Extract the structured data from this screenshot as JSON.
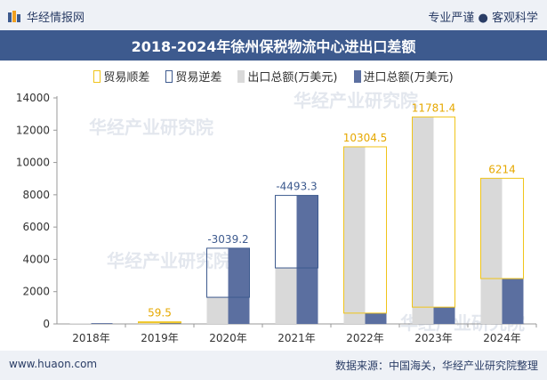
{
  "header": {
    "logo_text": "华经情报网",
    "slogan": "专业严谨 ● 客观科学"
  },
  "title": "2018-2024年徐州保税物流中心进出口差额",
  "footer": {
    "site": "www.huaon.com",
    "source": "数据来源：中国海关，华经产业研究院整理"
  },
  "watermark": "华经产业研究院",
  "colors": {
    "export": "#d9d9d9",
    "import": "#5b6fa0",
    "surplus": "#f0c419",
    "deficit": "#3d5a8e"
  },
  "chart_data": {
    "type": "bar",
    "categories": [
      "2018年",
      "2019年",
      "2020年",
      "2021年",
      "2022年",
      "2023年",
      "2024年"
    ],
    "series": [
      {
        "name": "出口总额(万美元)",
        "values": [
          40,
          130,
          1650,
          3470,
          10970,
          12820,
          9020
        ]
      },
      {
        "name": "进口总额(万美元)",
        "values": [
          50,
          70,
          4690,
          7960,
          670,
          1040,
          2810
        ]
      }
    ],
    "balance": {
      "surplus_name": "贸易顺差",
      "deficit_name": "贸易逆差",
      "values": [
        null,
        59.5,
        -3039.2,
        -4493.3,
        10304.5,
        11781.4,
        6214
      ],
      "labels": [
        "",
        "59.5",
        "-3039.2",
        "-4493.3",
        "10304.5",
        "11781.4",
        "6214"
      ]
    },
    "yticks": [
      "0",
      "2000",
      "4000",
      "6000",
      "8000",
      "10000",
      "12000",
      "14000"
    ],
    "ylim": [
      0,
      14000
    ],
    "legend_position": "top-center",
    "grid": false
  }
}
